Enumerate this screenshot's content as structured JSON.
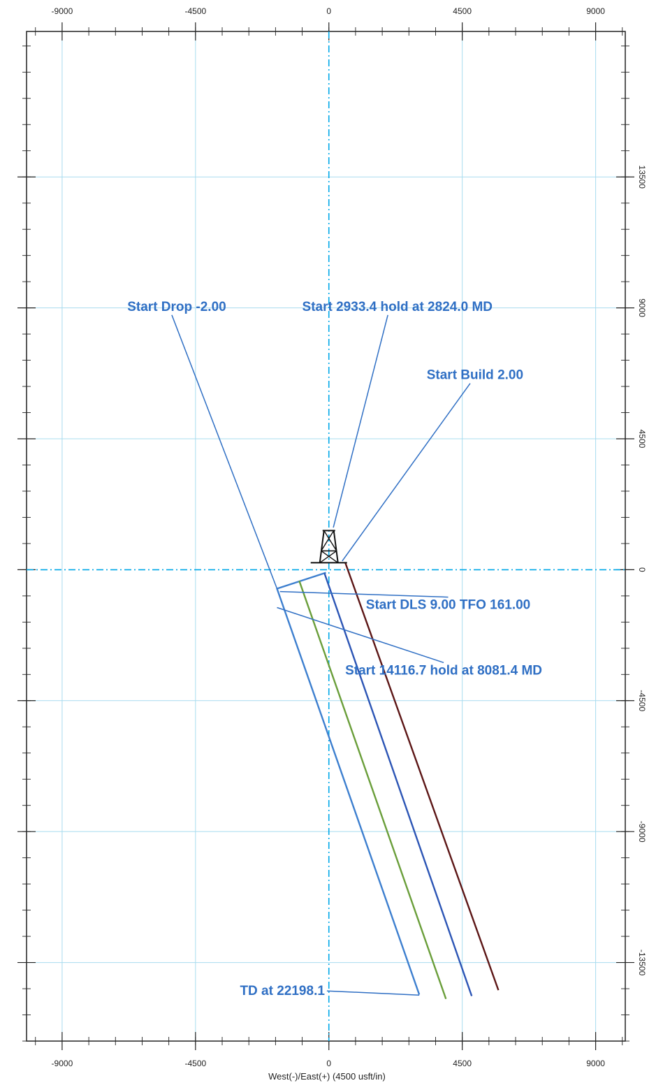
{
  "chart_data": {
    "type": "line",
    "title": "",
    "xlabel": "West(-)/East(+) (4500 usft/in)",
    "ylabel": "",
    "xlim": [
      -10200,
      10000
    ],
    "ylim": [
      -16200,
      18500
    ],
    "grid": true,
    "x_ticks": [
      -9000,
      -4500,
      0,
      4500,
      9000
    ],
    "x_tick_labels": [
      "-9000",
      "-4500",
      "0",
      "4500",
      "9000"
    ],
    "y_ticks": [
      13500,
      9000,
      4500,
      0,
      -4500,
      -9000,
      -13500
    ],
    "y_tick_labels": [
      "13500",
      "9000",
      "4500",
      "0",
      "-4500",
      "-9000",
      "-13500"
    ],
    "colors": {
      "grid": "#a8dcef",
      "axis_zero": "#00a8e8",
      "annotation": "#2f6fc4",
      "frame": "#222222",
      "rig": "#111111"
    },
    "series": [
      {
        "color": "#3d7fcf",
        "points": [
          [
            -100,
            -100
          ],
          [
            -1750,
            -650
          ],
          [
            3050,
            -14600
          ]
        ]
      },
      {
        "color": "#6a9e3a",
        "points": [
          [
            -1000,
            -380
          ],
          [
            3950,
            -14750
          ]
        ]
      },
      {
        "color": "#2c55b5",
        "points": [
          [
            -150,
            -120
          ],
          [
            4820,
            -14650
          ]
        ]
      },
      {
        "color": "#5c1616",
        "points": [
          [
            550,
            250
          ],
          [
            5720,
            -14450
          ]
        ]
      }
    ],
    "annotations": [
      {
        "text": "Start Drop -2.00",
        "label": [
          -6800,
          8900
        ],
        "target": [
          -1750,
          -650
        ]
      },
      {
        "text": "Start 2933.4 hold at 2824.0 MD",
        "label": [
          -900,
          8900
        ],
        "target": [
          150,
          1450
        ]
      },
      {
        "text": "Start Build 2.00",
        "label": [
          3300,
          6550
        ],
        "target": [
          450,
          300
        ]
      },
      {
        "text": "Start DLS 9.00 TFO 161.00",
        "label": [
          1250,
          -1350
        ],
        "target": [
          -1650,
          -750
        ]
      },
      {
        "text": "Start 14116.7 hold at 8081.4 MD",
        "label": [
          550,
          -3600
        ],
        "target": [
          -1750,
          -1300
        ]
      },
      {
        "text": "TD at 22198.1",
        "label": [
          -3000,
          -14620
        ],
        "target": [
          3050,
          -14620
        ]
      }
    ]
  }
}
